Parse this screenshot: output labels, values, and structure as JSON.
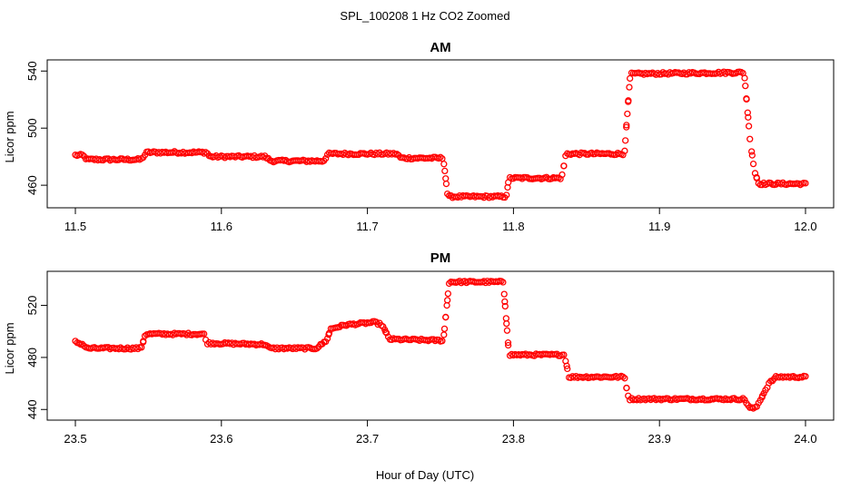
{
  "figure": {
    "title": "SPL_100208  1 Hz CO2 Zoomed",
    "xlabel": "Hour of Day (UTC)",
    "point_color": "#ff0000",
    "marker": "open-circle"
  },
  "chart_data": [
    {
      "type": "scatter",
      "title": "AM",
      "xlabel": "",
      "ylabel": "Licor ppm",
      "xlim": [
        11.5,
        12.0
      ],
      "ylim": [
        448,
        544
      ],
      "xticks": [
        11.5,
        11.6,
        11.7,
        11.8,
        11.9,
        12.0
      ],
      "xtick_labels": [
        "11.5",
        "11.6",
        "11.7",
        "11.8",
        "11.9",
        "12.0"
      ],
      "yticks": [
        460,
        500,
        540
      ],
      "ytick_labels": [
        "460",
        "500",
        "540"
      ],
      "grid": false,
      "series": [
        {
          "color": "#ff0000",
          "profile": [
            [
              11.5,
              481
            ],
            [
              11.505,
              481
            ],
            [
              11.508,
              478
            ],
            [
              11.545,
              478
            ],
            [
              11.549,
              483
            ],
            [
              11.59,
              483
            ],
            [
              11.592,
              480
            ],
            [
              11.63,
              480
            ],
            [
              11.634,
              477
            ],
            [
              11.67,
              477
            ],
            [
              11.673,
              482
            ],
            [
              11.72,
              482
            ],
            [
              11.723,
              479
            ],
            [
              11.752,
              479
            ],
            [
              11.755,
              452
            ],
            [
              11.795,
              452
            ],
            [
              11.797,
              465
            ],
            [
              11.833,
              465
            ],
            [
              11.836,
              482
            ],
            [
              11.876,
              482
            ],
            [
              11.88,
              538
            ],
            [
              11.958,
              539
            ],
            [
              11.962,
              492
            ],
            [
              11.965,
              470
            ],
            [
              11.968,
              461
            ],
            [
              12.0,
              461
            ]
          ]
        }
      ]
    },
    {
      "type": "scatter",
      "title": "PM",
      "xlabel": "Hour of Day (UTC)",
      "ylabel": "Licor ppm",
      "xlim": [
        23.5,
        24.0
      ],
      "ylim": [
        436,
        542
      ],
      "xticks": [
        23.5,
        23.6,
        23.7,
        23.8,
        23.9,
        24.0
      ],
      "xtick_labels": [
        "23.5",
        "23.6",
        "23.7",
        "23.8",
        "23.9",
        "24.0"
      ],
      "yticks": [
        440,
        480,
        520
      ],
      "ytick_labels": [
        "440",
        "480",
        "520"
      ],
      "grid": false,
      "series": [
        {
          "color": "#ff0000",
          "profile": [
            [
              23.5,
              492
            ],
            [
              23.505,
              490
            ],
            [
              23.508,
              487
            ],
            [
              23.545,
              487
            ],
            [
              23.548,
              498
            ],
            [
              23.588,
              498
            ],
            [
              23.59,
              491
            ],
            [
              23.63,
              490
            ],
            [
              23.633,
              487
            ],
            [
              23.665,
              487
            ],
            [
              23.672,
              493
            ],
            [
              23.675,
              502
            ],
            [
              23.685,
              505
            ],
            [
              23.705,
              507
            ],
            [
              23.71,
              505
            ],
            [
              23.715,
              494
            ],
            [
              23.752,
              493
            ],
            [
              23.756,
              538
            ],
            [
              23.793,
              538
            ],
            [
              23.797,
              482
            ],
            [
              23.835,
              482
            ],
            [
              23.838,
              465
            ],
            [
              23.876,
              465
            ],
            [
              23.879,
              448
            ],
            [
              23.958,
              448
            ],
            [
              23.962,
              441
            ],
            [
              23.966,
              441
            ],
            [
              23.975,
              460
            ],
            [
              23.98,
              465
            ],
            [
              24.0,
              465
            ]
          ]
        }
      ]
    }
  ]
}
